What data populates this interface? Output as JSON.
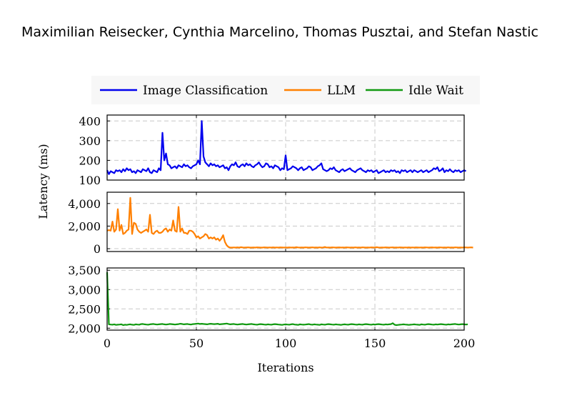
{
  "authors": "Maximilian Reisecker, Cynthia Marcelino, Thomas Pusztai, and Stefan Nastic",
  "chart_data": {
    "type": "line",
    "xlabel": "Iterations",
    "ylabel": "Latency (ms)",
    "xlim": [
      0,
      200
    ],
    "xticks": [
      0,
      50,
      100,
      150,
      200
    ],
    "grid": true,
    "legend_position": "top",
    "panels": [
      {
        "series_name": "Image Classification",
        "color": "#0000ee",
        "ylim": [
          100,
          430
        ],
        "yticks": [
          100,
          200,
          300,
          400
        ],
        "ytick_labels": [
          "100",
          "200",
          "300",
          "400"
        ],
        "y": [
          150,
          130,
          145,
          140,
          135,
          150,
          145,
          150,
          140,
          155,
          145,
          160,
          150,
          155,
          140,
          145,
          135,
          150,
          145,
          140,
          155,
          150,
          145,
          160,
          140,
          135,
          150,
          145,
          140,
          160,
          150,
          340,
          200,
          235,
          180,
          175,
          160,
          165,
          170,
          160,
          175,
          170,
          165,
          180,
          170,
          175,
          165,
          160,
          170,
          175,
          180,
          200,
          180,
          400,
          220,
          190,
          180,
          170,
          185,
          175,
          180,
          170,
          175,
          165,
          170,
          175,
          160,
          165,
          150,
          170,
          180,
          175,
          190,
          170,
          165,
          175,
          180,
          170,
          185,
          175,
          180,
          170,
          165,
          175,
          180,
          190,
          175,
          165,
          170,
          185,
          180,
          165,
          170,
          160,
          175,
          170,
          165,
          150,
          160,
          155,
          225,
          150,
          155,
          160,
          170,
          165,
          160,
          150,
          160,
          165,
          150,
          155,
          160,
          170,
          165,
          150,
          155,
          160,
          170,
          175,
          185,
          155,
          150,
          145,
          150,
          160,
          155,
          165,
          150,
          145,
          140,
          150,
          155,
          145,
          150,
          155,
          160,
          150,
          145,
          140,
          150,
          155,
          160,
          150,
          145,
          140,
          150,
          145,
          150,
          140,
          145,
          150,
          135,
          140,
          145,
          150,
          140,
          145,
          140,
          150,
          145,
          150,
          140,
          145,
          135,
          150,
          145,
          150,
          140,
          145,
          150,
          140,
          150,
          145,
          140,
          145,
          150,
          140,
          145,
          150,
          140,
          145,
          150,
          160,
          155,
          165,
          145,
          150,
          160,
          140,
          150,
          145,
          155,
          145,
          140,
          150,
          145,
          150,
          140,
          145,
          150,
          145
        ]
      },
      {
        "series_name": "LLM",
        "color": "#ff8000",
        "ylim": [
          -250,
          5000
        ],
        "yticks": [
          0,
          2000,
          4000
        ],
        "ytick_labels": [
          "0",
          "2,000",
          "4,000"
        ],
        "y": [
          1600,
          1650,
          1600,
          2400,
          1500,
          1700,
          3500,
          1600,
          2100,
          1300,
          1400,
          1600,
          1700,
          4500,
          1300,
          2300,
          2200,
          1700,
          1500,
          1400,
          1500,
          1600,
          1700,
          1500,
          3000,
          1400,
          1300,
          1500,
          1600,
          1400,
          1400,
          1500,
          1700,
          1800,
          1500,
          1700,
          1600,
          2500,
          1600,
          1500,
          3700,
          1500,
          1800,
          1400,
          1400,
          1300,
          1600,
          1600,
          1500,
          1300,
          1000,
          1100,
          900,
          1000,
          1100,
          1300,
          1200,
          900,
          1000,
          900,
          1000,
          800,
          900,
          700,
          900,
          1200,
          600,
          300,
          150,
          100,
          100,
          110,
          100,
          120,
          100,
          130,
          110,
          100,
          110,
          120,
          100,
          100,
          110,
          100,
          120,
          110,
          100,
          100,
          120,
          110,
          100,
          110,
          100,
          120,
          100,
          110,
          100,
          120,
          110,
          100,
          110,
          100,
          120,
          100,
          110,
          100,
          130,
          110,
          100,
          110,
          100,
          120,
          110,
          100,
          110,
          120,
          100,
          110,
          100,
          120,
          100,
          110,
          150,
          100,
          110,
          100,
          120,
          110,
          100,
          110,
          120,
          100,
          110,
          100,
          120,
          110,
          100,
          110,
          100,
          120,
          100,
          110,
          100,
          120,
          110,
          100,
          110,
          100,
          120,
          110,
          100,
          130,
          110,
          100,
          110,
          100,
          120,
          110,
          100,
          110,
          120,
          100,
          110,
          100,
          120,
          110,
          100,
          110,
          100,
          120,
          100,
          110,
          100,
          120,
          110,
          100,
          110,
          100,
          120,
          110,
          100,
          110,
          120,
          100,
          110,
          100,
          120,
          110,
          100,
          110,
          100,
          120,
          100,
          110,
          100,
          120,
          110,
          100,
          110,
          100,
          120,
          110,
          100,
          110,
          120,
          100
        ]
      },
      {
        "series_name": "Idle Wait",
        "color": "#119911",
        "ylim": [
          1950,
          3560
        ],
        "yticks": [
          2000,
          2500,
          3000,
          3500
        ],
        "ytick_labels": [
          "2,000",
          "2,500",
          "3,000",
          "3,500"
        ],
        "y": [
          3450,
          2100,
          2095,
          2090,
          2100,
          2085,
          2090,
          2095,
          2100,
          2080,
          2090,
          2085,
          2095,
          2100,
          2090,
          2085,
          2100,
          2095,
          2090,
          2105,
          2110,
          2100,
          2095,
          2090,
          2100,
          2105,
          2110,
          2100,
          2095,
          2100,
          2105,
          2110,
          2100,
          2095,
          2100,
          2110,
          2105,
          2100,
          2095,
          2100,
          2105,
          2115,
          2110,
          2100,
          2105,
          2110,
          2100,
          2095,
          2105,
          2110,
          2115,
          2120,
          2110,
          2115,
          2110,
          2105,
          2100,
          2110,
          2115,
          2110,
          2105,
          2110,
          2115,
          2100,
          2105,
          2110,
          2115,
          2120,
          2110,
          2100,
          2105,
          2110,
          2100,
          2095,
          2100,
          2105,
          2110,
          2100,
          2095,
          2100,
          2105,
          2110,
          2100,
          2095,
          2090,
          2100,
          2105,
          2100,
          2095,
          2090,
          2100,
          2095,
          2090,
          2100,
          2105,
          2100,
          2095,
          2090,
          2085,
          2095,
          2100,
          2095,
          2090,
          2100,
          2105,
          2095,
          2090,
          2085,
          2100,
          2095,
          2090,
          2095,
          2100,
          2105,
          2095,
          2090,
          2100,
          2095,
          2090,
          2085,
          2100,
          2095,
          2090,
          2100,
          2105,
          2100,
          2095,
          2090,
          2100,
          2095,
          2090,
          2085,
          2095,
          2100,
          2095,
          2090,
          2100,
          2105,
          2100,
          2095,
          2090,
          2100,
          2095,
          2090,
          2100,
          2105,
          2100,
          2095,
          2090,
          2100,
          2095,
          2100,
          2105,
          2100,
          2095,
          2090,
          2100,
          2095,
          2100,
          2105,
          2130,
          2090,
          2080,
          2085,
          2090,
          2095,
          2100,
          2095,
          2090,
          2085,
          2090,
          2095,
          2100,
          2095,
          2090,
          2085,
          2100,
          2095,
          2090,
          2100,
          2105,
          2100,
          2095,
          2090,
          2100,
          2095,
          2100,
          2105,
          2100,
          2095,
          2090,
          2100,
          2095,
          2100,
          2105,
          2110,
          2100,
          2095,
          2100,
          2105,
          2100,
          2095,
          2100
        ]
      }
    ]
  }
}
